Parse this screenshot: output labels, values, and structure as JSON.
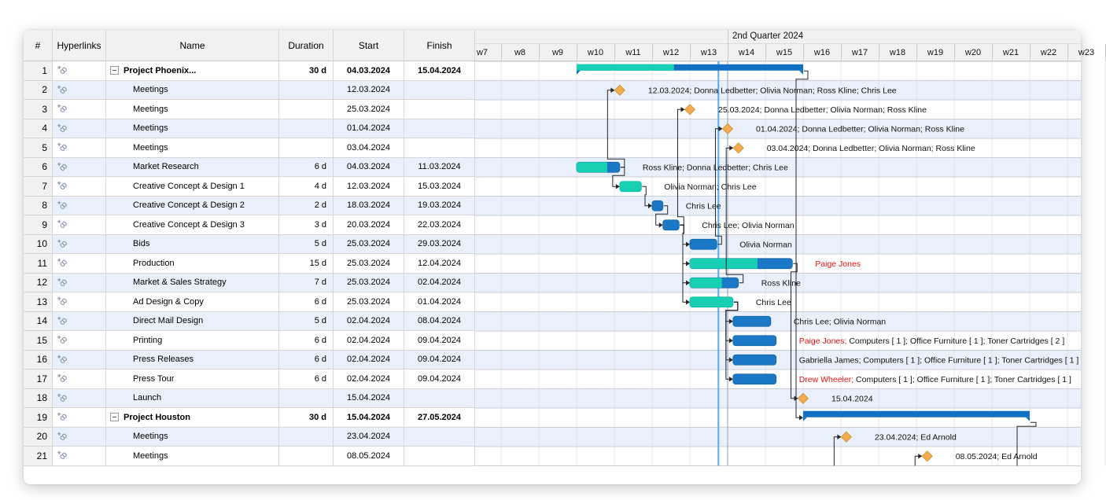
{
  "table": {
    "columns": [
      "#",
      "Hyperlinks",
      "Name",
      "Duration",
      "Start",
      "Finish"
    ],
    "rows": [
      {
        "num": 1,
        "name": "Project Phoenix...",
        "summary": true,
        "duration": "30 d",
        "start": "04.03.2024",
        "finish": "15.04.2024",
        "type": "summary",
        "bar_start": "04.03.2024",
        "bar_finish": "15.04.2024",
        "progress": 0.43,
        "label": []
      },
      {
        "num": 2,
        "name": "Meetings",
        "summary": false,
        "duration": "",
        "start": "12.03.2024",
        "finish": "",
        "type": "milestone",
        "date": "12.03.2024",
        "label": [
          {
            "text": "12.03.2024; Donna Ledbetter; Olivia Norman; Ross Kline; Chris Lee"
          }
        ]
      },
      {
        "num": 3,
        "name": "Meetings",
        "summary": false,
        "duration": "",
        "start": "25.03.2024",
        "finish": "",
        "type": "milestone",
        "date": "25.03.2024",
        "label": [
          {
            "text": "25.03.2024; Donna Ledbetter; Olivia Norman; Ross Kline"
          }
        ]
      },
      {
        "num": 4,
        "name": "Meetings",
        "summary": false,
        "duration": "",
        "start": "01.04.2024",
        "finish": "",
        "type": "milestone",
        "date": "01.04.2024",
        "label": [
          {
            "text": "01.04.2024; Donna Ledbetter; Olivia Norman; Ross Kline"
          }
        ]
      },
      {
        "num": 5,
        "name": "Meetings",
        "summary": false,
        "duration": "",
        "start": "03.04.2024",
        "finish": "",
        "type": "milestone",
        "date": "03.04.2024",
        "label": [
          {
            "text": "03.04.2024; Donna Ledbetter; Olivia Norman; Ross Kline"
          }
        ]
      },
      {
        "num": 6,
        "name": "Market Research",
        "summary": false,
        "duration": "6 d",
        "start": "04.03.2024",
        "finish": "11.03.2024",
        "type": "task",
        "bar_start": "04.03.2024",
        "bar_finish": "11.03.2024",
        "progress": 0.71,
        "label": [
          {
            "text": "Ross Kline; Donna Ledbetter; Chris Lee"
          }
        ]
      },
      {
        "num": 7,
        "name": "Creative Concept & Design 1",
        "summary": false,
        "duration": "4 d",
        "start": "12.03.2024",
        "finish": "15.03.2024",
        "type": "task",
        "bar_start": "12.03.2024",
        "bar_finish": "15.03.2024",
        "progress": 1,
        "label": [
          {
            "text": "Olivia Norman; Chris Lee"
          }
        ]
      },
      {
        "num": 8,
        "name": "Creative Concept & Design 2",
        "summary": false,
        "duration": "2 d",
        "start": "18.03.2024",
        "finish": "19.03.2024",
        "type": "task",
        "bar_start": "18.03.2024",
        "bar_finish": "19.03.2024",
        "progress": 0,
        "label": [
          {
            "text": "Chris Lee"
          }
        ]
      },
      {
        "num": 9,
        "name": "Creative Concept & Design 3",
        "summary": false,
        "duration": "3 d",
        "start": "20.03.2024",
        "finish": "22.03.2024",
        "type": "task",
        "bar_start": "20.03.2024",
        "bar_finish": "22.03.2024",
        "progress": 0,
        "label": [
          {
            "text": "Chris Lee; Olivia Norman"
          }
        ]
      },
      {
        "num": 10,
        "name": "Bids",
        "summary": false,
        "duration": "5 d",
        "start": "25.03.2024",
        "finish": "29.03.2024",
        "type": "task",
        "bar_start": "25.03.2024",
        "bar_finish": "29.03.2024",
        "progress": 0,
        "label": [
          {
            "text": "Olivia Norman"
          }
        ]
      },
      {
        "num": 11,
        "name": "Production",
        "summary": false,
        "duration": "15 d",
        "start": "25.03.2024",
        "finish": "12.04.2024",
        "type": "task",
        "bar_start": "25.03.2024",
        "bar_finish": "12.04.2024",
        "progress": 0.66,
        "label": [
          {
            "text": "Paige Jones",
            "red": true
          }
        ]
      },
      {
        "num": 12,
        "name": "Market & Sales Strategy",
        "summary": false,
        "duration": "7 d",
        "start": "25.03.2024",
        "finish": "02.04.2024",
        "type": "task",
        "bar_start": "25.03.2024",
        "bar_finish": "02.04.2024",
        "progress": 0.66,
        "label": [
          {
            "text": "Ross Kline"
          }
        ]
      },
      {
        "num": 13,
        "name": "Ad Design & Copy",
        "summary": false,
        "duration": "6 d",
        "start": "25.03.2024",
        "finish": "01.04.2024",
        "type": "task",
        "bar_start": "25.03.2024",
        "bar_finish": "01.04.2024",
        "progress": 1,
        "label": [
          {
            "text": "Chris Lee"
          }
        ]
      },
      {
        "num": 14,
        "name": "Direct Mail Design",
        "summary": false,
        "duration": "5 d",
        "start": "02.04.2024",
        "finish": "08.04.2024",
        "type": "task",
        "bar_start": "02.04.2024",
        "bar_finish": "08.04.2024",
        "progress": 0,
        "label": [
          {
            "text": "Chris Lee; Olivia Norman"
          }
        ]
      },
      {
        "num": 15,
        "name": "Printing",
        "summary": false,
        "duration": "6 d",
        "start": "02.04.2024",
        "finish": "09.04.2024",
        "type": "task",
        "bar_start": "02.04.2024",
        "bar_finish": "09.04.2024",
        "progress": 0,
        "label": [
          {
            "text": "Paige Jones;",
            "red": true
          },
          {
            "text": " Computers [ 1 ]; Office Furniture [ 1 ]; Toner Cartridges [ 2 ]"
          }
        ]
      },
      {
        "num": 16,
        "name": "Press Releases",
        "summary": false,
        "duration": "6 d",
        "start": "02.04.2024",
        "finish": "09.04.2024",
        "type": "task",
        "bar_start": "02.04.2024",
        "bar_finish": "09.04.2024",
        "progress": 0,
        "label": [
          {
            "text": "Gabriella  James; Computers [ 1 ]; Office Furniture [ 1 ]; Toner Cartridges [ 1 ]"
          }
        ]
      },
      {
        "num": 17,
        "name": "Press Tour",
        "summary": false,
        "duration": "6 d",
        "start": "02.04.2024",
        "finish": "09.04.2024",
        "type": "task",
        "bar_start": "02.04.2024",
        "bar_finish": "09.04.2024",
        "progress": 0,
        "label": [
          {
            "text": "Drew Wheeler;",
            "red": true
          },
          {
            "text": " Computers [ 1 ]; Office Furniture [ 1 ]; Toner Cartridges [ 1 ]"
          }
        ]
      },
      {
        "num": 18,
        "name": "Launch",
        "summary": false,
        "duration": "",
        "start": "15.04.2024",
        "finish": "",
        "type": "milestone",
        "date": "15.04.2024",
        "label": [
          {
            "text": "15.04.2024"
          }
        ]
      },
      {
        "num": 19,
        "name": "Project Houston",
        "summary": true,
        "duration": "30 d",
        "start": "15.04.2024",
        "finish": "27.05.2024",
        "type": "summary",
        "bar_start": "15.04.2024",
        "bar_finish": "27.05.2024",
        "progress": 0,
        "label": []
      },
      {
        "num": 20,
        "name": "Meetings",
        "summary": false,
        "duration": "",
        "start": "23.04.2024",
        "finish": "",
        "type": "milestone",
        "date": "23.04.2024",
        "label": [
          {
            "text": "23.04.2024; Ed Arnold"
          }
        ]
      },
      {
        "num": 21,
        "name": "Meetings",
        "summary": false,
        "duration": "",
        "start": "08.05.2024",
        "finish": "",
        "type": "milestone",
        "date": "08.05.2024",
        "label": [
          {
            "text": "08.05.2024; Ed Arnold"
          }
        ]
      }
    ]
  },
  "timeline": {
    "quarter_label": "2nd Quarter 2024",
    "weeks": [
      "w7",
      "w8",
      "w9",
      "w10",
      "w11",
      "w12",
      "w13",
      "w14",
      "w15",
      "w16",
      "w17",
      "w18",
      "w19",
      "w20",
      "w21",
      "w22",
      "w23"
    ]
  },
  "gantt": {
    "today_date": "30.03.2024",
    "quarter_start_date": "01.04.2024",
    "dependencies": [
      {
        "from": 6,
        "to": 2
      },
      {
        "from": 6,
        "to": 7
      },
      {
        "from": 7,
        "to": 8
      },
      {
        "from": 8,
        "to": 9
      },
      {
        "from": 9,
        "to": 3
      },
      {
        "from": 9,
        "to": 10
      },
      {
        "from": 9,
        "to": 11
      },
      {
        "from": 9,
        "to": 12
      },
      {
        "from": 9,
        "to": 13
      },
      {
        "from": 10,
        "to": 4
      },
      {
        "from": 12,
        "to": 5
      },
      {
        "from": 13,
        "to": 14
      },
      {
        "from": 13,
        "to": 15
      },
      {
        "from": 13,
        "to": 16
      },
      {
        "from": 13,
        "to": 17
      },
      {
        "from": 11,
        "to": 18
      },
      {
        "from": 1,
        "to": 19
      },
      {
        "from": 19,
        "to": null
      },
      {
        "from": null,
        "to": 20
      },
      {
        "from": null,
        "to": 21
      }
    ],
    "colors": {
      "teal": "#17CFB2",
      "teal_border": "#0fb89c",
      "task_blue": "#1B78C6",
      "task_blue_border": "#14639f",
      "summary_blue": "#1170C4",
      "milestone": "#F2AC4D",
      "milestone_border": "#CF8E30",
      "red_label": "#E81313",
      "label": "#111111",
      "today_line": "#5FA8E6",
      "quarter_line": "#9aa0a6",
      "row_stripe": "#e9f0fb",
      "row_line": "#c9ced6",
      "week_grid": "#e4e4e4",
      "dep_line": "#262626"
    }
  }
}
